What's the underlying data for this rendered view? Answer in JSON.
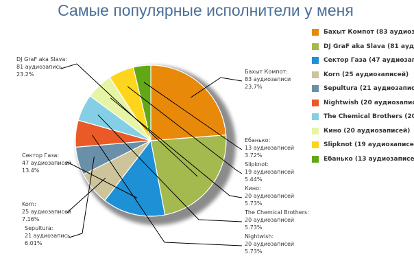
{
  "chart_data": {
    "type": "pie",
    "title": "Самые популярные исполнители у меня",
    "slices": [
      {
        "name": "Бахыт Компот",
        "value": 83,
        "callout": [
          "Бахыт Компот:",
          "83 аудиозаписи",
          "23.7%"
        ],
        "legend": "Бахыт Компот (83 аудиозаписи)",
        "color": "#e8890a"
      },
      {
        "name": "DJ GraF aka Slava",
        "value": 81,
        "callout": [
          "DJ GraF aka Slava:",
          "81 аудиозапись",
          "23.2%"
        ],
        "legend": "DJ GraF aka Slava (81 аудиозапись)",
        "color": "#a4b94e"
      },
      {
        "name": "Сектор Газа",
        "value": 47,
        "callout": [
          "Сектор Газа:",
          "47 аудиозаписей",
          "13.4%"
        ],
        "legend": "Сектор Газа (47 аудиозаписей)",
        "color": "#1e90d6"
      },
      {
        "name": "Korn",
        "value": 25,
        "callout": [
          "Korn:",
          "25 аудиозаписей",
          "7.16%"
        ],
        "legend": "Korn (25 аудиозаписей)",
        "color": "#cdc49c"
      },
      {
        "name": "Sepultura",
        "value": 21,
        "callout": [
          "Sepultura:",
          "21 аудиозапись",
          "6.01%"
        ],
        "legend": "Sepultura (21 аудиозапись)",
        "color": "#6a8fa8"
      },
      {
        "name": "Nightwish",
        "value": 20,
        "callout": [
          "Nightwish:",
          "20 аудиозаписей",
          "5.73%"
        ],
        "legend": "Nightwish (20 аудиозаписей)",
        "color": "#ea5a26"
      },
      {
        "name": "The Chemical Brothers",
        "value": 20,
        "callout": [
          "The Chemical Brothers:",
          "20 аудиозаписей",
          "5.73%"
        ],
        "legend": "The Chemical Brothers (20 аудиозаписей)",
        "color": "#84cfe6"
      },
      {
        "name": "Кино",
        "value": 20,
        "callout": [
          "Кино:",
          "20 аудиозаписей",
          "5.73%"
        ],
        "legend": "Кино (20 аудиозаписей)",
        "color": "#e6f4a6"
      },
      {
        "name": "Slipknot",
        "value": 19,
        "callout": [
          "Slipknot:",
          "19 аудиозаписей",
          "5.44%"
        ],
        "legend": "Slipknot (19 аудиозаписей)",
        "color": "#fdd51c"
      },
      {
        "name": "Ебанько",
        "value": 13,
        "callout": [
          "Ебанько:",
          "13 аудиозаписей",
          "3.72%"
        ],
        "legend": "Ебанько (13 аудиозаписей)",
        "color": "#62a816"
      }
    ],
    "legend_placement": "right"
  }
}
